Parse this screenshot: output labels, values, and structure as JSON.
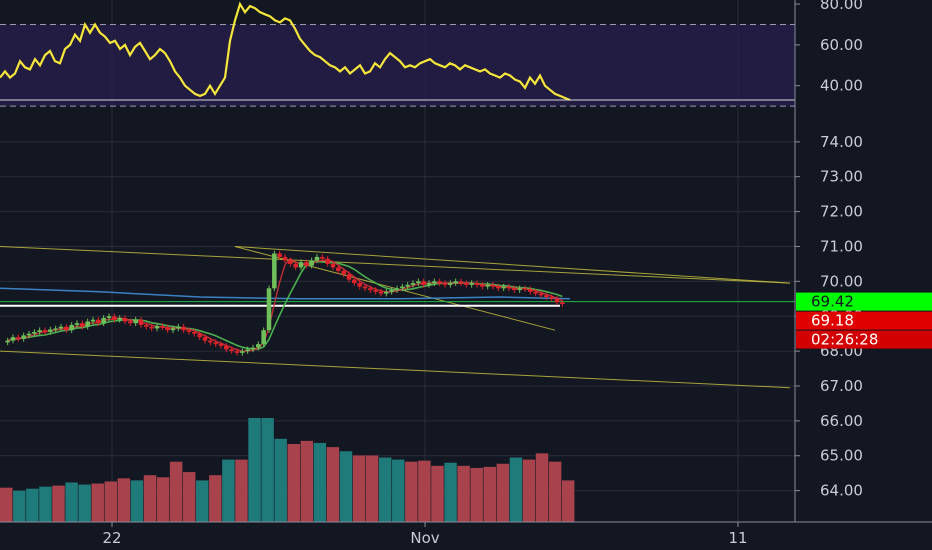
{
  "chart_data": [
    {
      "type": "line",
      "pane": "oscillator",
      "ylim": [
        33,
        82
      ],
      "ticks": [
        "80.00",
        "60.00",
        "40.00"
      ],
      "tick_values": [
        80,
        60,
        40
      ],
      "levels": [
        70,
        30
      ],
      "x": [
        0,
        5,
        10,
        15,
        20,
        25,
        30,
        35,
        40,
        45,
        50,
        55,
        60,
        65,
        70,
        75,
        80,
        85,
        90,
        95,
        100,
        105,
        110,
        115,
        120,
        125,
        130,
        135,
        140,
        145,
        150,
        155,
        160,
        165,
        170,
        175,
        180,
        185,
        190,
        195,
        200,
        205,
        210,
        215,
        220,
        225,
        230,
        235,
        240,
        245,
        250,
        255,
        260,
        265,
        270,
        275,
        280,
        285,
        290,
        295,
        300,
        305,
        310,
        315,
        320,
        325,
        330,
        335,
        340,
        345,
        350,
        355,
        360,
        365,
        370,
        375,
        380,
        385,
        390,
        395,
        400,
        405,
        410,
        415,
        420,
        425,
        430,
        435,
        440,
        445,
        450,
        455,
        460,
        465,
        470,
        475,
        480,
        485,
        490,
        495,
        500,
        505,
        510,
        515,
        520,
        525,
        530,
        535,
        540,
        545,
        550,
        555,
        560,
        565,
        570
      ],
      "values": [
        44,
        47,
        44,
        46,
        52,
        49,
        48,
        53,
        50,
        55,
        57,
        52,
        51,
        58,
        60,
        65,
        62,
        70,
        66,
        70,
        66,
        64,
        61,
        62,
        58,
        60,
        55,
        59,
        61,
        57,
        53,
        55,
        58,
        56,
        52,
        47,
        44,
        40,
        38,
        36,
        35,
        36,
        40,
        36,
        40,
        44,
        62,
        72,
        80,
        76,
        79,
        78,
        76,
        75,
        74,
        72,
        71,
        73,
        72,
        68,
        63,
        60,
        57,
        55,
        54,
        52,
        50,
        49,
        47,
        49,
        46,
        48,
        50,
        46,
        47,
        51,
        49,
        53,
        56,
        54,
        52,
        49,
        50,
        49,
        51,
        52,
        53,
        51,
        50,
        49,
        51,
        50,
        48,
        50,
        49,
        48,
        47,
        48,
        46,
        45,
        44,
        46,
        45,
        43,
        42,
        39,
        44,
        41,
        45,
        40,
        38,
        36,
        35,
        34,
        33
      ]
    },
    {
      "type": "candlestick",
      "pane": "price",
      "xlabel_ticks": [
        "22",
        "Nov",
        "11"
      ],
      "ylim": [
        63.1,
        75.2
      ],
      "ticks": [
        "74.00",
        "73.00",
        "72.00",
        "71.00",
        "70.00",
        "69.00",
        "68.00",
        "67.00",
        "66.00",
        "65.00",
        "64.00"
      ],
      "tick_values": [
        74,
        73,
        72,
        71,
        70,
        69,
        68,
        67,
        66,
        65,
        64
      ],
      "close": [
        68.3,
        68.4,
        68.35,
        68.45,
        68.5,
        68.55,
        68.6,
        68.55,
        68.62,
        68.65,
        68.7,
        68.6,
        68.75,
        68.8,
        68.7,
        68.85,
        68.9,
        68.8,
        68.95,
        69.0,
        68.9,
        68.95,
        68.85,
        68.8,
        68.9,
        68.75,
        68.7,
        68.65,
        68.72,
        68.68,
        68.6,
        68.65,
        68.7,
        68.6,
        68.55,
        68.5,
        68.4,
        68.3,
        68.25,
        68.2,
        68.15,
        68.05,
        68.0,
        67.95,
        68.0,
        68.05,
        68.1,
        68.2,
        68.6,
        69.8,
        70.8,
        70.7,
        70.6,
        70.5,
        70.4,
        70.55,
        70.45,
        70.6,
        70.7,
        70.65,
        70.5,
        70.4,
        70.3,
        70.2,
        70.05,
        69.95,
        69.85,
        69.8,
        69.75,
        69.7,
        69.65,
        69.7,
        69.75,
        69.8,
        69.85,
        69.9,
        69.95,
        70.0,
        69.9,
        69.95,
        70.0,
        69.95,
        69.9,
        69.95,
        70.0,
        69.95,
        69.9,
        69.95,
        69.9,
        69.85,
        69.9,
        69.85,
        69.8,
        69.85,
        69.8,
        69.75,
        69.8,
        69.78,
        69.7,
        69.65,
        69.6,
        69.55,
        69.5,
        69.4,
        69.35
      ],
      "ma_white": 69.3,
      "price_line": 69.42,
      "tags": [
        {
          "label": "69.42",
          "value": 69.42,
          "bg": "#00ff00",
          "fg": "#131722"
        },
        {
          "label": "69.18",
          "value": 69.18,
          "bg": "#e00000",
          "fg": "#ffffff"
        },
        {
          "label": "02:26:28",
          "value": 68.65,
          "bg": "#d20000",
          "fg": "#ffffff"
        }
      ]
    },
    {
      "type": "bar",
      "pane": "volume",
      "values": [
        33,
        30,
        32,
        34,
        35,
        38,
        36,
        37,
        39,
        42,
        40,
        45,
        43,
        58,
        48,
        40,
        45,
        60,
        60,
        100,
        100,
        80,
        75,
        78,
        76,
        72,
        68,
        64,
        64,
        62,
        60,
        58,
        59,
        54,
        57,
        54,
        52,
        53,
        56,
        62,
        60,
        66,
        58,
        40
      ],
      "colors": [
        "red",
        "teal",
        "teal",
        "teal",
        "red",
        "teal",
        "teal",
        "red",
        "red",
        "red",
        "teal",
        "red",
        "red",
        "red",
        "red",
        "teal",
        "red",
        "teal",
        "red",
        "teal",
        "teal",
        "teal",
        "red",
        "red",
        "teal",
        "red",
        "teal",
        "red",
        "red",
        "teal",
        "teal",
        "red",
        "red",
        "red",
        "teal",
        "red",
        "red",
        "red",
        "red",
        "teal",
        "red",
        "red",
        "red",
        "red"
      ]
    }
  ],
  "colors": {
    "background": "#131722",
    "grid": "#2a2e39",
    "oscillator_line": "#f5e63a",
    "oscillator_band": "#2a1f4d",
    "up_candle": "#6fbf5a",
    "down_candle": "#e0232a",
    "ma_white": "#ffffff",
    "ma_blue": "#3b82c4",
    "ma_green": "#4caf50",
    "ma_red": "#d4303a",
    "trendline": "#c2bd3c",
    "price_line": "#1fb84a",
    "volume_red": "#a8434d",
    "volume_teal": "#1f7a7a"
  }
}
